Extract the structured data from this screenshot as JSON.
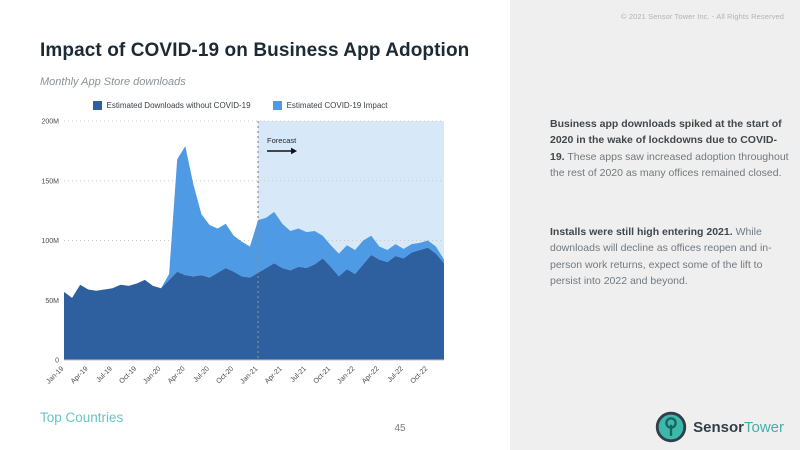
{
  "header": {
    "copyright": "© 2021 Sensor Tower Inc. - All Rights Reserved"
  },
  "title": "Impact of COVID-19 on Business App Adoption",
  "subtitle": "Monthly App Store downloads",
  "chart_data": {
    "type": "area",
    "stacked": true,
    "title": "Impact of COVID-19 on Business App Adoption",
    "subtitle": "Monthly App Store downloads",
    "unit": "millions of downloads",
    "categories": [
      "Jan-19",
      "Feb-19",
      "Mar-19",
      "Apr-19",
      "May-19",
      "Jun-19",
      "Jul-19",
      "Aug-19",
      "Sep-19",
      "Oct-19",
      "Nov-19",
      "Dec-19",
      "Jan-20",
      "Feb-20",
      "Mar-20",
      "Apr-20",
      "May-20",
      "Jun-20",
      "Jul-20",
      "Aug-20",
      "Sep-20",
      "Oct-20",
      "Nov-20",
      "Dec-20",
      "Jan-21",
      "Feb-21",
      "Mar-21",
      "Apr-21",
      "May-21",
      "Jun-21",
      "Jul-21",
      "Aug-21",
      "Sep-21",
      "Oct-21",
      "Nov-21",
      "Dec-21",
      "Jan-22",
      "Feb-22",
      "Mar-22",
      "Apr-22",
      "May-22",
      "Jun-22",
      "Jul-22",
      "Aug-22",
      "Sep-22",
      "Oct-22",
      "Nov-22",
      "Dec-22"
    ],
    "series": [
      {
        "name": "Estimated Downloads without COVID-19",
        "color": "#2e5f9e",
        "values": [
          57,
          52,
          63,
          59,
          58,
          59,
          60,
          63,
          62,
          64,
          67,
          62,
          60,
          67,
          74,
          71,
          70,
          71,
          69,
          73,
          77,
          74,
          70,
          69,
          73,
          77,
          81,
          77,
          75,
          78,
          77,
          80,
          85,
          78,
          70,
          76,
          72,
          80,
          88,
          84,
          82,
          87,
          85,
          90,
          92,
          94,
          89,
          81
        ]
      },
      {
        "name": "Estimated COVID-19 Impact",
        "color": "#4f9ae4",
        "values": [
          0,
          0,
          0,
          0,
          0,
          0,
          0,
          0,
          0,
          0,
          0,
          0,
          0,
          5,
          94,
          108,
          77,
          51,
          44,
          37,
          37,
          30,
          29,
          26,
          44,
          42,
          43,
          37,
          33,
          32,
          30,
          28,
          19,
          18,
          19,
          20,
          20,
          20,
          16,
          11,
          10,
          10,
          8,
          7,
          6,
          6,
          6,
          3
        ]
      }
    ],
    "ylim": [
      0,
      200
    ],
    "y_tick_values": [
      0,
      50,
      100,
      150,
      200
    ],
    "y_tick_labels": [
      "0",
      "50M",
      "100M",
      "150M",
      "200M"
    ],
    "x_tick_every": 3,
    "grid": "horizontal-dotted",
    "legend_position": "top-center",
    "forecast": {
      "label": "Forecast",
      "start_index": 24,
      "start_category": "Jan-21",
      "background": "#d7e8f8",
      "divider_color": "#938c83"
    }
  },
  "sidebar": {
    "para1_bold": "Business app downloads spiked at the start of 2020 in the wake of lockdowns due to COVID-19.",
    "para1_rest": " These apps saw increased adoption throughout the rest of 2020 as many offices remained closed.",
    "para2_bold": "Installs were still high entering 2021.",
    "para2_rest": " While downloads will decline as offices reopen and in-person work returns, expect some of the lift to persist into 2022 and beyond."
  },
  "footer": {
    "section_label": "Top Countries",
    "page_number": "45",
    "logo_sensor": "Sensor",
    "logo_tower": "Tower"
  },
  "colors": {
    "sidebar_bg": "#efefef",
    "title": "#1b2a35",
    "teal_accent": "#43b0a6",
    "grid": "#c9c9c9"
  }
}
